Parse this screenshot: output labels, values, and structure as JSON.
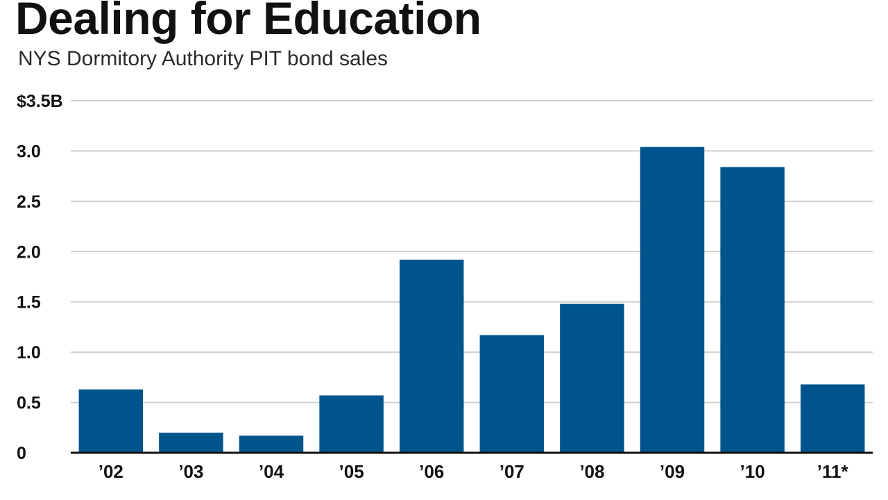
{
  "chart_data": {
    "type": "bar",
    "title": "Dealing for Education",
    "subtitle": "NYS Dormitory Authority PIT bond sales",
    "categories": [
      "’02",
      "’03",
      "’04",
      "’05",
      "’06",
      "’07",
      "’08",
      "’09",
      "’10",
      "’11*"
    ],
    "values": [
      0.63,
      0.2,
      0.17,
      0.57,
      1.92,
      1.17,
      1.48,
      3.04,
      2.84,
      0.68
    ],
    "ylim": [
      0,
      3.5
    ],
    "y_ticks": [
      {
        "value": 0,
        "label": "0"
      },
      {
        "value": 0.5,
        "label": "0.5"
      },
      {
        "value": 1.0,
        "label": "1.0"
      },
      {
        "value": 1.5,
        "label": "1.5"
      },
      {
        "value": 2.0,
        "label": "2.0"
      },
      {
        "value": 2.5,
        "label": "2.5"
      },
      {
        "value": 3.0,
        "label": "3.0"
      },
      {
        "value": 3.5,
        "label": "$3.5B"
      }
    ],
    "xlabel": "",
    "ylabel": "",
    "grid": true,
    "bar_color": "#00548c",
    "grid_color": "#cfcfcf"
  }
}
